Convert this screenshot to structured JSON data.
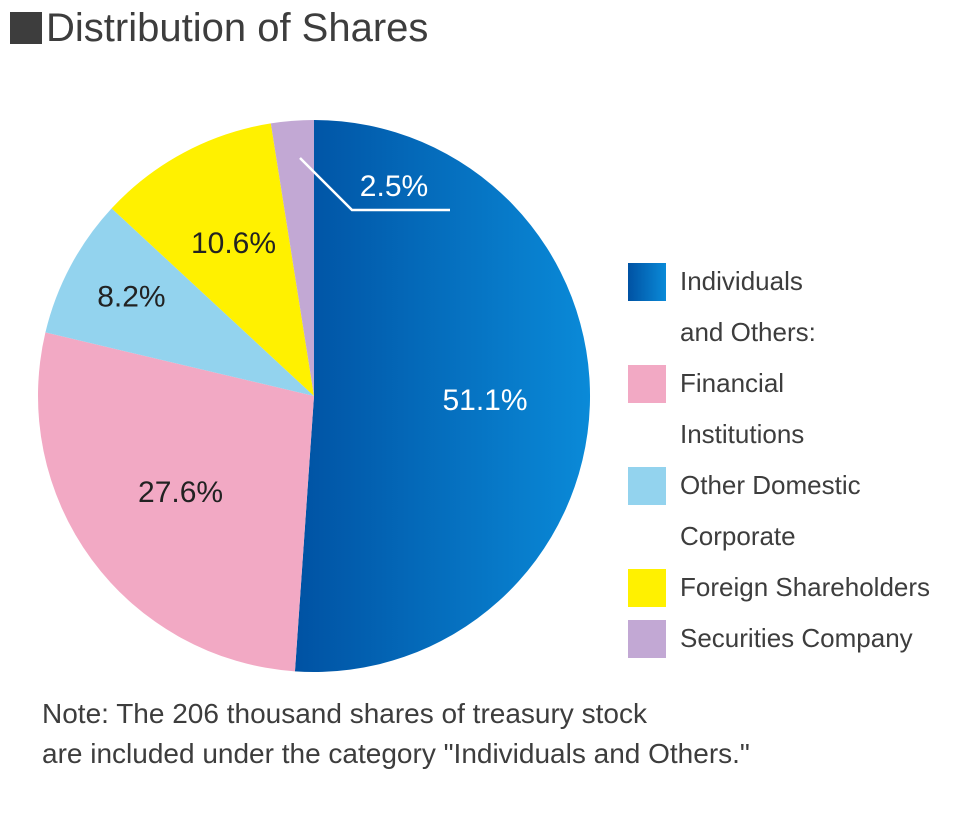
{
  "title": "Distribution of Shares",
  "chart_data": {
    "type": "pie",
    "title": "Distribution of Shares",
    "slices": [
      {
        "name": "Individuals and Others:",
        "value": 51.1,
        "label": "51.1%",
        "color": "#0a64b8",
        "label_color": "#ffffff"
      },
      {
        "name": "Financial Institutions",
        "value": 27.6,
        "label": "27.6%",
        "color": "#f2a9c4",
        "label_color": "#222222"
      },
      {
        "name": "Other Domestic Corporate",
        "value": 8.2,
        "label": "8.2%",
        "color": "#93d3ee",
        "label_color": "#222222"
      },
      {
        "name": "Foreign Shareholders",
        "value": 10.6,
        "label": "10.6%",
        "color": "#fff100",
        "label_color": "#222222"
      },
      {
        "name": "Securities Company",
        "value": 2.5,
        "label": "2.5%",
        "color": "#c2a8d4",
        "label_color": "#ffffff"
      }
    ],
    "legend": [
      {
        "lines": [
          "Individuals",
          " and Others:"
        ],
        "color": "#0a64b8"
      },
      {
        "lines": [
          "Financial",
          "Institutions"
        ],
        "color": "#f2a9c4"
      },
      {
        "lines": [
          "Other Domestic",
          "Corporate"
        ],
        "color": "#93d3ee"
      },
      {
        "lines": [
          "Foreign Shareholders"
        ],
        "color": "#fff100"
      },
      {
        "lines": [
          "Securities Company"
        ],
        "color": "#c2a8d4"
      }
    ],
    "legend_placement": "right"
  },
  "note": {
    "line1": "Note: The 206 thousand shares of treasury stock",
    "line2": "are included under the category \"Individuals and Others.\""
  }
}
